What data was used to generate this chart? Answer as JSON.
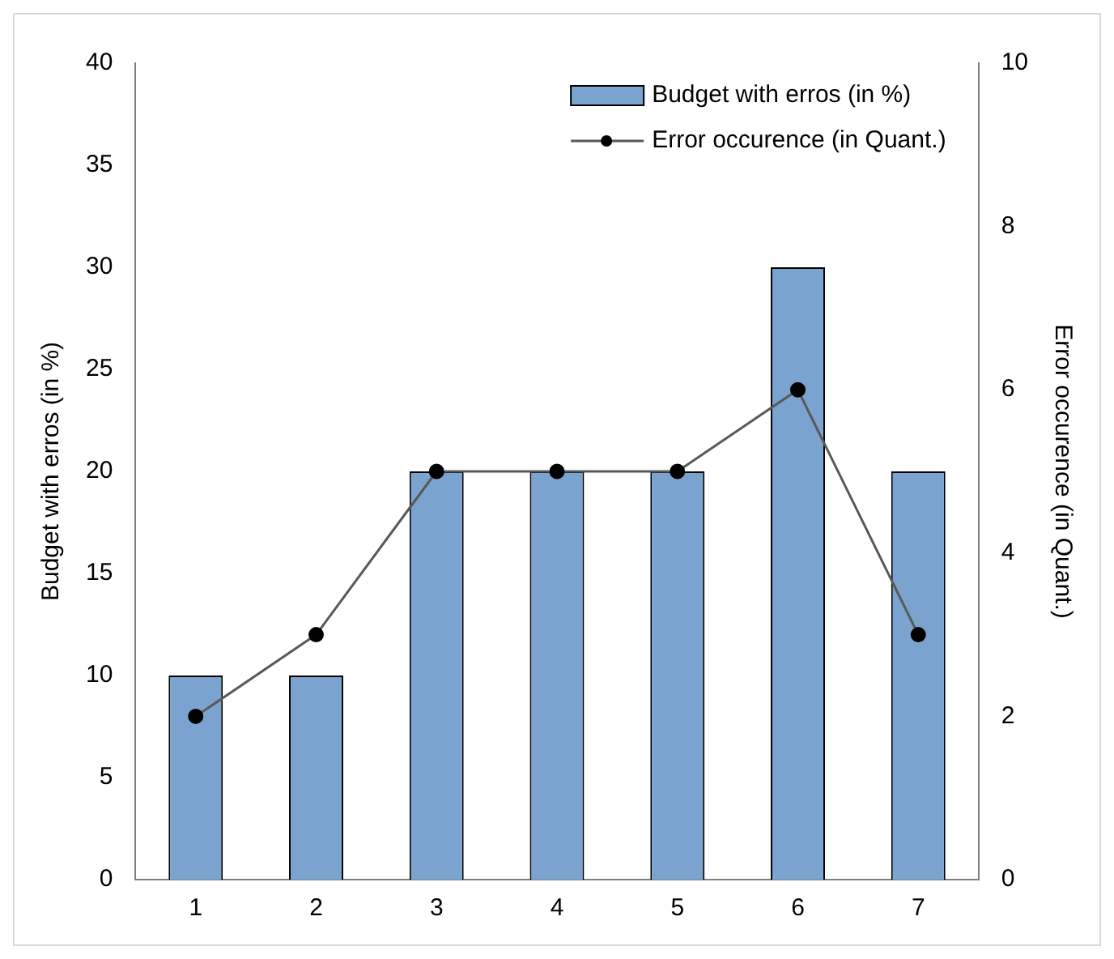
{
  "chart_data": {
    "type": "bar",
    "categories": [
      "1",
      "2",
      "3",
      "4",
      "5",
      "6",
      "7"
    ],
    "ylabel": "Budget with erros (in %)",
    "y2label": "Error occurence (in Quant.)",
    "series": [
      {
        "name": "Budget with erros (in %)",
        "color": "#7ba3d0",
        "values": [
          10,
          10,
          20,
          20,
          20,
          30,
          20
        ]
      },
      {
        "name": "Error occurence (in Quant.)",
        "type": "line",
        "axis": "y2",
        "color": "#595959",
        "values": [
          2,
          3,
          5,
          5,
          5,
          6,
          3
        ]
      }
    ],
    "ylim": [
      0,
      40
    ],
    "yticks": [
      0,
      5,
      10,
      15,
      20,
      25,
      30,
      35,
      40
    ],
    "y2lim": [
      0,
      10
    ],
    "y2ticks": [
      0,
      2,
      4,
      6,
      8,
      10
    ],
    "grid": false,
    "legend": "top right",
    "marker": "circle",
    "line_style": "solid"
  }
}
